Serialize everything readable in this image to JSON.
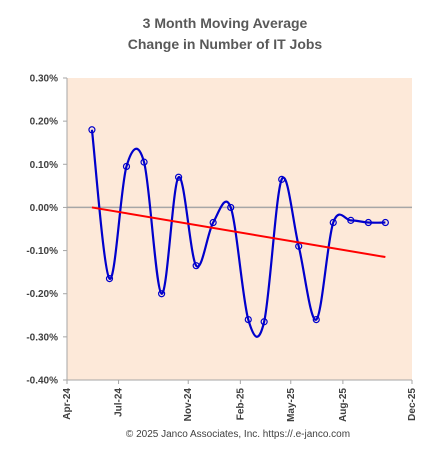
{
  "chart_data": {
    "type": "line",
    "title_lines": [
      "3 Month Moving Average",
      "Change in Number of IT Jobs"
    ],
    "xlabel": "",
    "ylabel": "",
    "x_ticks": [
      "Apr-24",
      "Jul-24",
      "Nov-24",
      "Feb-25",
      "May-25",
      "Aug-25",
      "Dec-25"
    ],
    "x_tick_dates": [
      "2024-04-01",
      "2024-07-01",
      "2024-11-01",
      "2025-02-01",
      "2025-05-01",
      "2025-08-01",
      "2025-12-01"
    ],
    "xlim": [
      "2024-04-01",
      "2025-12-01"
    ],
    "y_ticks": [
      "0.30%",
      "0.20%",
      "0.10%",
      "0.00%",
      "-0.10%",
      "-0.20%",
      "-0.30%",
      "-0.40%"
    ],
    "ylim": [
      -0.4,
      0.3
    ],
    "y_unit": "%",
    "grid": false,
    "legend": "none",
    "series": [
      {
        "type": "line",
        "smooth": true,
        "markers": "open-circle",
        "color": "#0000cc",
        "x": [
          "2024-05-15",
          "2024-06-15",
          "2024-07-15",
          "2024-08-15",
          "2024-09-15",
          "2024-10-15",
          "2024-11-15",
          "2024-12-15",
          "2025-01-15",
          "2025-02-15",
          "2025-03-15",
          "2025-04-15",
          "2025-05-15",
          "2025-06-15",
          "2025-07-15",
          "2025-08-15",
          "2025-09-15",
          "2025-10-15"
        ],
        "y": [
          0.18,
          -0.165,
          0.095,
          0.105,
          -0.2,
          0.07,
          -0.135,
          -0.035,
          0.0,
          -0.26,
          -0.265,
          0.065,
          -0.09,
          -0.26,
          -0.035,
          -0.03,
          -0.035,
          -0.035
        ]
      },
      {
        "type": "trendline",
        "color": "#ff0000",
        "x": [
          "2024-05-15",
          "2025-10-15"
        ],
        "y": [
          0.0,
          -0.115
        ]
      }
    ],
    "colors": {
      "plot_background": "#fde9d9",
      "axis": "#a6a6a6",
      "zero_line": "#a6a6a6"
    }
  },
  "footer": "© 2025 Janco Associates, Inc. https://.e-janco.com"
}
